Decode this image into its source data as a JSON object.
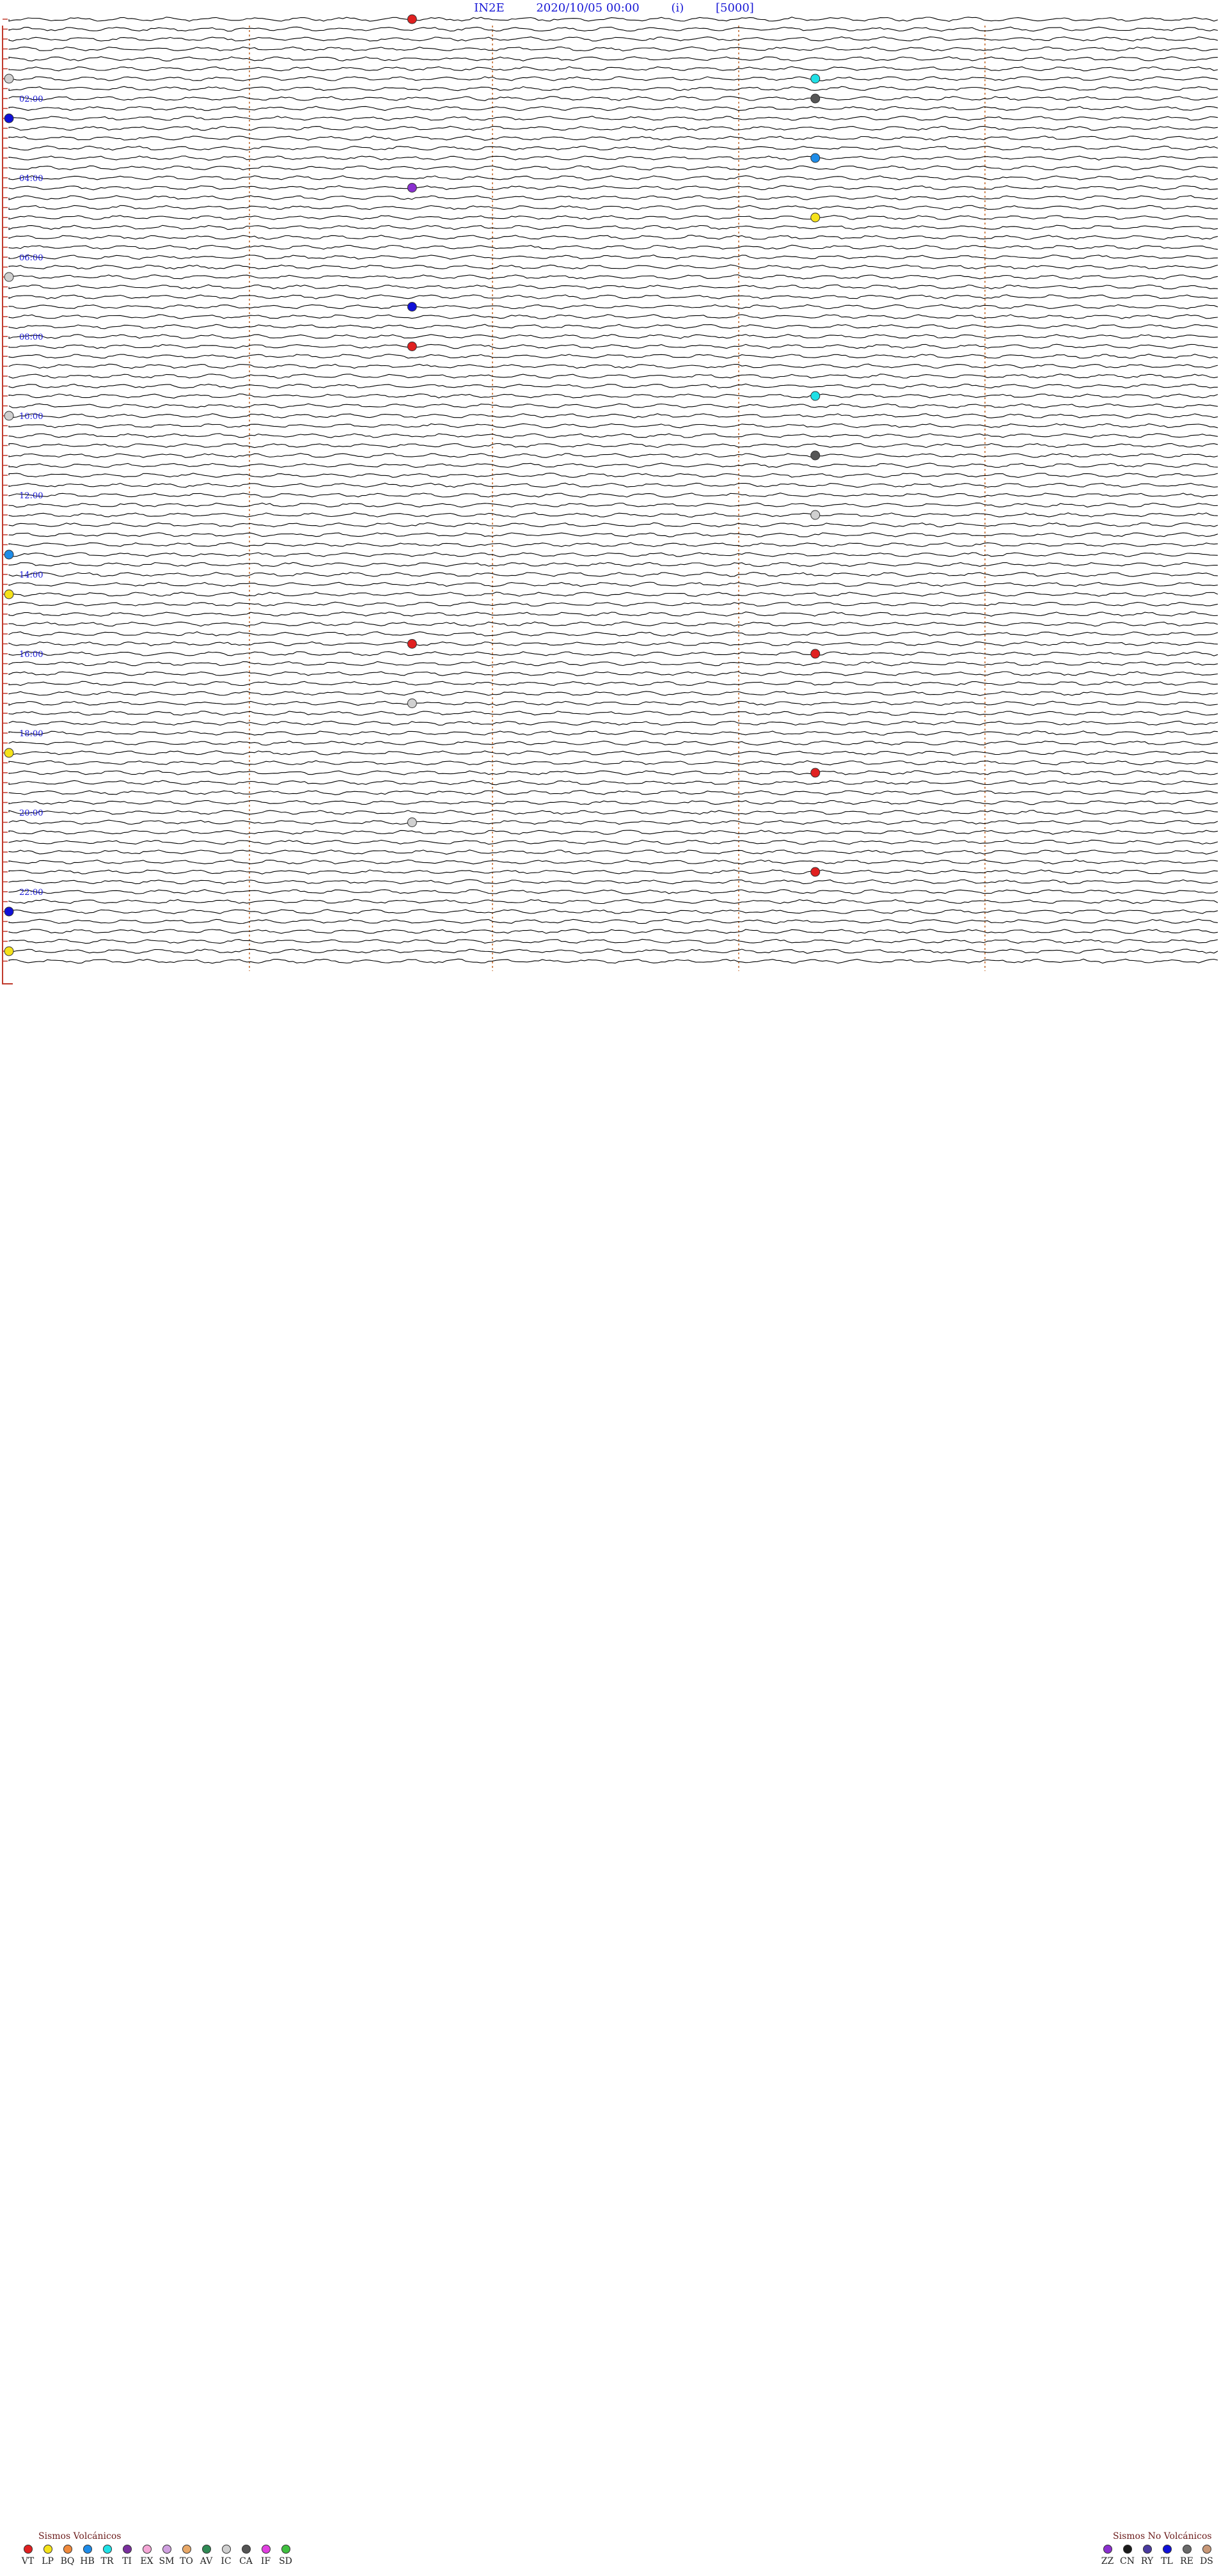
{
  "header": {
    "station": "IN2E",
    "datetime": "2020/10/05 00:00",
    "component": "(i)",
    "scale": "[5000]"
  },
  "colors": {
    "trace": "#000000",
    "time_label": "#1a1ad6",
    "vline": "#d08a5a",
    "tick": "#c0392b"
  },
  "chart_data": {
    "type": "scatter",
    "time_labels": [
      "02:00",
      "04:00",
      "06:00",
      "08:00",
      "10:00",
      "12:00",
      "14:00",
      "16:00",
      "18:00",
      "20:00",
      "22:00"
    ],
    "event_types": {
      "VT": "#e02020",
      "LP": "#f5e21a",
      "BQ": "#f08a3c",
      "HB": "#1e8ce8",
      "TR": "#1fe0e6",
      "TI": "#7a2f9e",
      "EX": "#f4a6d6",
      "SM": "#d0a0e0",
      "TO": "#e8a868",
      "AV": "#2f8a55",
      "IC": "#d0d0d0",
      "CA": "#555555",
      "IF": "#e040e0",
      "SD": "#40c040",
      "ZZ": "#8a2fcf",
      "CN": "#1a1a1a",
      "RY": "#4a3aa0",
      "TL": "#1010d8",
      "RE": "#6a6a6a",
      "DS": "#c89878"
    },
    "events": [
      {
        "t": "00:05",
        "type": "VT"
      },
      {
        "t": "01:30",
        "type": "IC"
      },
      {
        "t": "01:40",
        "type": "TR"
      },
      {
        "t": "02:10",
        "type": "CA"
      },
      {
        "t": "02:30",
        "type": "TL"
      },
      {
        "t": "03:40",
        "type": "HB"
      },
      {
        "t": "04:20",
        "type": "ZZ"
      },
      {
        "t": "05:10",
        "type": "LP"
      },
      {
        "t": "06:30",
        "type": "IC"
      },
      {
        "t": "07:20",
        "type": "TL"
      },
      {
        "t": "08:20",
        "type": "VT"
      },
      {
        "t": "09:40",
        "type": "TR"
      },
      {
        "t": "10:00",
        "type": "IC"
      },
      {
        "t": "11:10",
        "type": "CA"
      },
      {
        "t": "12:40",
        "type": "IC"
      },
      {
        "t": "13:30",
        "type": "HB"
      },
      {
        "t": "14:30",
        "type": "LP"
      },
      {
        "t": "15:50",
        "type": "VT"
      },
      {
        "t": "16:10",
        "type": "VT"
      },
      {
        "t": "17:20",
        "type": "IC"
      },
      {
        "t": "18:30",
        "type": "LP"
      },
      {
        "t": "19:10",
        "type": "VT"
      },
      {
        "t": "20:20",
        "type": "IC"
      },
      {
        "t": "21:40",
        "type": "VT"
      },
      {
        "t": "22:30",
        "type": "TL"
      },
      {
        "t": "23:30",
        "type": "LP"
      }
    ]
  },
  "legend": {
    "volcanic_title": "Sismos Volcánicos",
    "volcanic": [
      "VT",
      "LP",
      "BQ",
      "HB",
      "TR",
      "TI",
      "EX",
      "SM",
      "TO",
      "AV",
      "IC",
      "CA",
      "IF",
      "SD"
    ],
    "nonvolcanic_title": "Sismos No Volcánicos",
    "nonvolcanic": [
      "ZZ",
      "CN",
      "RY",
      "TL",
      "RE",
      "DS"
    ]
  }
}
